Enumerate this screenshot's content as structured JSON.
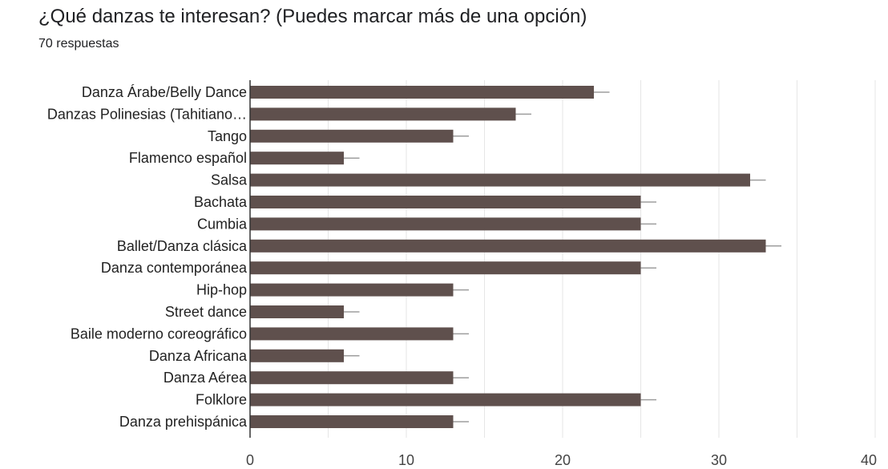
{
  "header": {
    "title": "¿Qué danzas te interesan? (Puedes marcar más de una opción)",
    "response_count": "70 respuestas"
  },
  "colors": {
    "bar": "#5f504d",
    "grid": "#e6e6e6",
    "axis": "#333333",
    "error_bar": "#9e9e9e"
  },
  "chart_data": {
    "type": "bar",
    "orientation": "horizontal",
    "title": "¿Qué danzas te interesan? (Puedes marcar más de una opción)",
    "xlabel": "",
    "ylabel": "",
    "xlim": [
      0,
      40
    ],
    "xticks": [
      0,
      10,
      20,
      30,
      40
    ],
    "grid": true,
    "legend": "none",
    "error_bars": true,
    "error_bar_extent": 1,
    "categories": [
      "Danza Árabe/Belly Dance",
      "Danzas Polinesias (Tahitiano…",
      "Tango",
      "Flamenco español",
      "Salsa",
      "Bachata",
      "Cumbia",
      "Ballet/Danza clásica",
      "Danza contemporánea",
      "Hip-hop",
      "Street dance",
      "Baile moderno coreográfico",
      "Danza Africana",
      "Danza Aérea",
      "Folklore",
      "Danza prehispánica"
    ],
    "values": [
      22,
      17,
      13,
      6,
      32,
      25,
      25,
      33,
      25,
      13,
      6,
      13,
      6,
      13,
      25,
      13
    ]
  }
}
